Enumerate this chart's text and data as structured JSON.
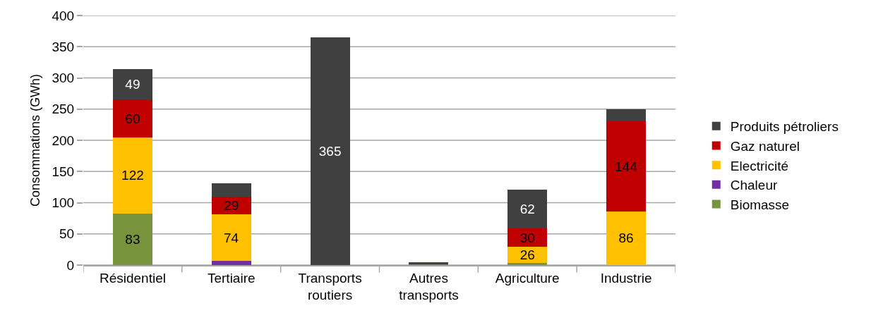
{
  "chart_data": {
    "type": "bar",
    "stacked": true,
    "ylabel": "Consommations (GWh)",
    "categories": [
      "Résidentiel",
      "Tertiaire",
      "Transports routiers",
      "Autres transports",
      "Agriculture",
      "Industrie"
    ],
    "ylim": [
      0,
      400
    ],
    "yticks": [
      0,
      50,
      100,
      150,
      200,
      250,
      300,
      350,
      400
    ],
    "grid": "y",
    "legend": "right",
    "series": [
      {
        "name": "Biomasse",
        "color": "#77933c",
        "values": [
          83,
          0,
          0,
          1,
          3,
          0
        ],
        "value_labels": [
          "83",
          null,
          null,
          null,
          null,
          null
        ]
      },
      {
        "name": "Chaleur",
        "color": "#7030a0",
        "values": [
          0,
          7,
          0,
          0,
          0,
          0
        ],
        "value_labels": [
          null,
          null,
          null,
          null,
          null,
          null
        ]
      },
      {
        "name": "Electricité",
        "color": "#ffc000",
        "values": [
          122,
          74,
          0,
          0,
          26,
          86
        ],
        "value_labels": [
          "122",
          "74",
          null,
          null,
          "26",
          "86"
        ]
      },
      {
        "name": "Gaz naturel",
        "color": "#c00000",
        "values": [
          60,
          29,
          0,
          0,
          30,
          144
        ],
        "value_labels": [
          "60",
          "29",
          null,
          null,
          "30",
          "144"
        ]
      },
      {
        "name": "Produits pétroliers",
        "color": "#404040",
        "values": [
          49,
          21,
          365,
          4,
          62,
          20
        ],
        "value_labels": [
          "49",
          null,
          "365",
          null,
          "62",
          null
        ]
      }
    ]
  }
}
